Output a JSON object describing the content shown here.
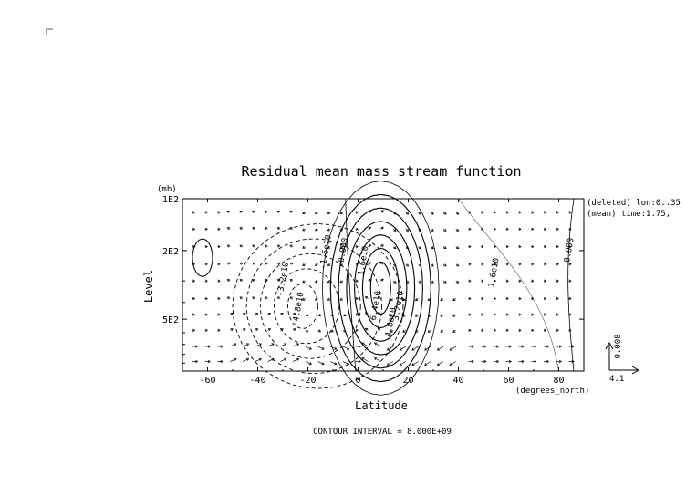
{
  "chart_data": {
    "type": "contour",
    "title": "Residual mean mass stream function",
    "xlabel": "Latitude",
    "ylabel": "Level",
    "x_units": "(degrees_north)",
    "y_units": "(mb)",
    "xlim": [
      -70,
      90
    ],
    "ylim": [
      1000,
      100
    ],
    "y_scale": "log",
    "x_ticks": [
      -60,
      -40,
      -20,
      0,
      20,
      40,
      60,
      80
    ],
    "y_ticks": [
      {
        "value": 100,
        "label": "1E2"
      },
      {
        "value": 200,
        "label": "2E2"
      },
      {
        "value": 500,
        "label": "5E2"
      }
    ],
    "side_labels": [
      "(deleted) lon:0..35",
      "(mean) time:1.75,"
    ],
    "contour_interval_text": "CONTOUR INTERVAL = 8.000E+09",
    "vector_key": {
      "vertical": "0.008",
      "horizontal": "4.1"
    },
    "contour_labels": [
      {
        "text": "-3.2e10",
        "x": -29,
        "y": 295
      },
      {
        "text": "-4.8e10",
        "x": -23,
        "y": 440
      },
      {
        "text": "-1.6e10",
        "x": -12,
        "y": 205
      },
      {
        "text": "0.000",
        "x": -5,
        "y": 200
      },
      {
        "text": "1.6e10",
        "x": 3,
        "y": 230
      },
      {
        "text": "6.4e10",
        "x": 8,
        "y": 420
      },
      {
        "text": "3.2e10",
        "x": 17,
        "y": 420
      },
      {
        "text": "4.8e10",
        "x": 14,
        "y": 525
      },
      {
        "text": "1.6e10",
        "x": 55,
        "y": 270
      },
      {
        "text": "0.000",
        "x": 85,
        "y": 200
      }
    ],
    "grid": false
  }
}
